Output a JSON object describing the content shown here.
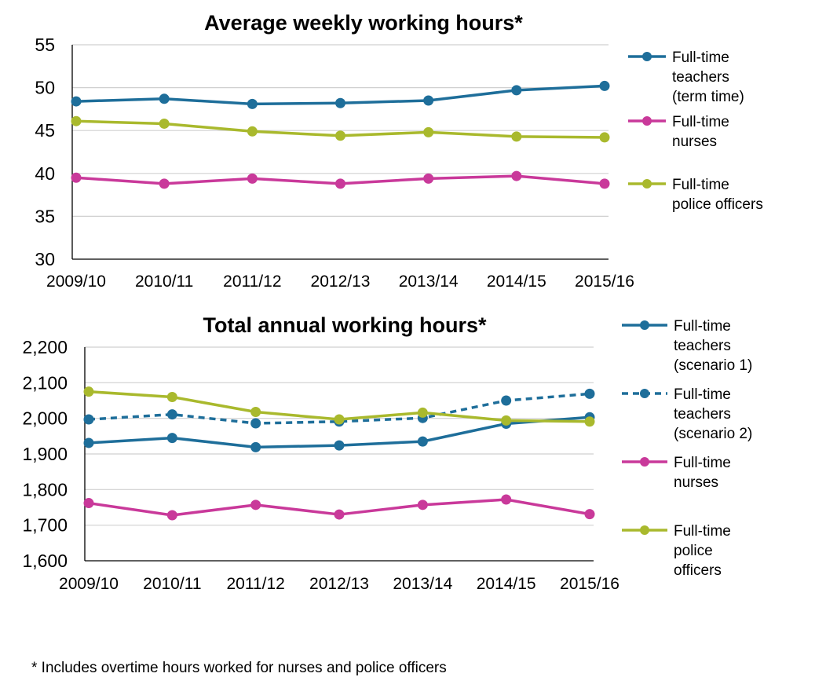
{
  "footnote": "* Includes overtime hours worked for nurses and police officers",
  "chart_data": [
    {
      "type": "line",
      "title": "Average weekly working hours*",
      "categories": [
        "2009/10",
        "2010/11",
        "2011/12",
        "2012/13",
        "2013/14",
        "2014/15",
        "2015/16"
      ],
      "ylim": [
        30,
        55
      ],
      "yticks": [
        30,
        35,
        40,
        45,
        50,
        55
      ],
      "grid": true,
      "legend_position": "right",
      "series": [
        {
          "name": "Full-time teachers (term time)",
          "legend_lines": [
            "Full-time",
            "teachers",
            "(term time)"
          ],
          "color": "#1E6E9A",
          "dashed": false,
          "values": [
            48.4,
            48.7,
            48.1,
            48.2,
            48.5,
            49.7,
            50.2
          ]
        },
        {
          "name": "Full-time nurses",
          "legend_lines": [
            "Full-time",
            "nurses"
          ],
          "color": "#C9399A",
          "dashed": false,
          "values": [
            39.5,
            38.8,
            39.4,
            38.8,
            39.4,
            39.7,
            38.8
          ]
        },
        {
          "name": "Full-time police officers",
          "legend_lines": [
            "Full-time",
            "police officers"
          ],
          "color": "#A9B92D",
          "dashed": false,
          "values": [
            46.1,
            45.8,
            44.9,
            44.4,
            44.8,
            44.3,
            44.2
          ]
        }
      ]
    },
    {
      "type": "line",
      "title": "Total annual working hours*",
      "categories": [
        "2009/10",
        "2010/11",
        "2011/12",
        "2012/13",
        "2013/14",
        "2014/15",
        "2015/16"
      ],
      "ylim": [
        1600,
        2200
      ],
      "yticks": [
        "1,600",
        "1,700",
        "1,800",
        "1,900",
        "2,000",
        "2,100",
        "2,200"
      ],
      "grid": true,
      "legend_position": "right",
      "series": [
        {
          "name": "Full-time teachers (scenario 1)",
          "legend_lines": [
            "Full-time",
            "teachers",
            "(scenario 1)"
          ],
          "color": "#1E6E9A",
          "dashed": false,
          "values": [
            1931,
            1945,
            1919,
            1924,
            1935,
            1985,
            2003
          ]
        },
        {
          "name": "Full-time teachers (scenario 2)",
          "legend_lines": [
            "Full-time",
            "teachers",
            "(scenario 2)"
          ],
          "color": "#1E6E9A",
          "dashed": true,
          "values": [
            1997,
            2011,
            1986,
            1991,
            2001,
            2050,
            2069
          ]
        },
        {
          "name": "Full-time nurses",
          "legend_lines": [
            "Full-time",
            "nurses"
          ],
          "color": "#C9399A",
          "dashed": false,
          "values": [
            1762,
            1728,
            1757,
            1730,
            1757,
            1772,
            1731
          ]
        },
        {
          "name": "Full-time police officers",
          "legend_lines": [
            "Full-time",
            "police",
            "officers"
          ],
          "color": "#A9B92D",
          "dashed": false,
          "values": [
            2075,
            2060,
            2018,
            1997,
            2016,
            1994,
            1991
          ]
        }
      ]
    }
  ]
}
